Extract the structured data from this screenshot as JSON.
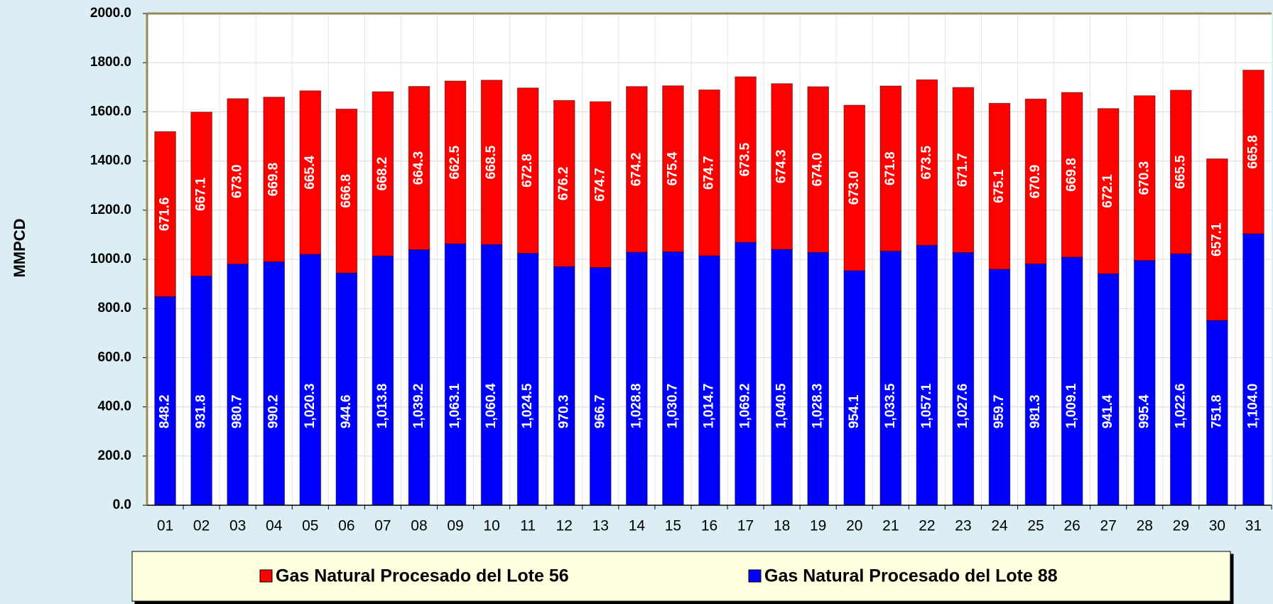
{
  "chart_data": {
    "type": "stacked_bar",
    "y_label": "MMPCD",
    "categories": [
      "01",
      "02",
      "03",
      "04",
      "05",
      "06",
      "07",
      "08",
      "09",
      "10",
      "11",
      "12",
      "13",
      "14",
      "15",
      "16",
      "17",
      "18",
      "19",
      "20",
      "21",
      "22",
      "23",
      "24",
      "25",
      "26",
      "27",
      "28",
      "29",
      "30",
      "31"
    ],
    "series": [
      {
        "name": "Gas Natural Procesado del Lote 56",
        "color": "#ff0000",
        "values": [
          671.6,
          667.1,
          673.0,
          669.8,
          665.4,
          666.8,
          668.2,
          664.3,
          662.5,
          668.5,
          672.8,
          676.2,
          674.7,
          674.2,
          675.4,
          674.7,
          673.5,
          674.3,
          674.0,
          673.0,
          671.8,
          673.5,
          671.7,
          675.1,
          670.9,
          669.8,
          672.1,
          670.3,
          665.5,
          657.1,
          665.8
        ],
        "value_labels": [
          "671.6",
          "667.1",
          "673.0",
          "669.8",
          "665.4",
          "666.8",
          "668.2",
          "664.3",
          "662.5",
          "668.5",
          "672.8",
          "676.2",
          "674.7",
          "674.2",
          "675.4",
          "674.7",
          "673.5",
          "674.3",
          "674.0",
          "673.0",
          "671.8",
          "673.5",
          "671.7",
          "675.1",
          "670.9",
          "669.8",
          "672.1",
          "670.3",
          "665.5",
          "657.1",
          "665.8"
        ]
      },
      {
        "name": "Gas Natural Procesado del Lote 88",
        "color": "#0000ff",
        "values": [
          848.2,
          931.8,
          980.7,
          990.2,
          1020.3,
          944.6,
          1013.8,
          1039.2,
          1063.1,
          1060.4,
          1024.5,
          970.3,
          966.7,
          1028.8,
          1030.7,
          1014.7,
          1069.2,
          1040.5,
          1028.3,
          954.1,
          1033.5,
          1057.1,
          1027.6,
          959.7,
          981.3,
          1009.1,
          941.4,
          995.4,
          1022.6,
          751.8,
          1104.0
        ],
        "value_labels": [
          "848.2",
          "931.8",
          "980.7",
          "990.2",
          "1,020.3",
          "944.6",
          "1,013.8",
          "1,039.2",
          "1,063.1",
          "1,060.4",
          "1,024.5",
          "970.3",
          "966.7",
          "1,028.8",
          "1,030.7",
          "1,014.7",
          "1,069.2",
          "1,040.5",
          "1,028.3",
          "954.1",
          "1,033.5",
          "1,057.1",
          "1,027.6",
          "959.7",
          "981.3",
          "1,009.1",
          "941.4",
          "995.4",
          "1,022.6",
          "751.8",
          "1,104.0"
        ]
      }
    ],
    "ylim": [
      0,
      2000
    ],
    "yticks": [
      {
        "value": 0,
        "label": "0.0"
      },
      {
        "value": 200,
        "label": "200.0"
      },
      {
        "value": 400,
        "label": "400.0"
      },
      {
        "value": 600,
        "label": "600.0"
      },
      {
        "value": 800,
        "label": "800.0"
      },
      {
        "value": 1000,
        "label": "1000.0"
      },
      {
        "value": 1200,
        "label": "1200.0"
      },
      {
        "value": 1400,
        "label": "1400.0"
      },
      {
        "value": 1600,
        "label": "1600.0"
      },
      {
        "value": 1800,
        "label": "1800.0"
      },
      {
        "value": 2000,
        "label": "2000.0"
      }
    ],
    "grid": true,
    "legend_position": "bottom"
  }
}
